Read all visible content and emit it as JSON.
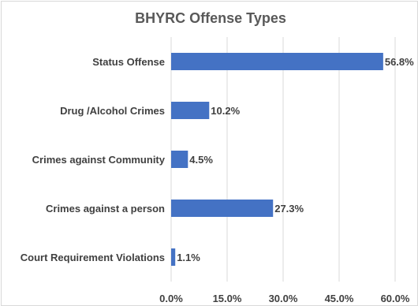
{
  "chart_data": {
    "type": "bar",
    "orientation": "horizontal",
    "title": "BHYRC Offense Types",
    "categories": [
      "Status Offense",
      "Drug /Alcohol Crimes",
      "Crimes against Community",
      "Crimes against a person",
      "Court Requirement Violations"
    ],
    "values": [
      56.8,
      10.2,
      4.5,
      27.3,
      1.1
    ],
    "value_labels": [
      "56.8%",
      "10.2%",
      "4.5%",
      "27.3%",
      "1.1%"
    ],
    "x_ticks": [
      "0.0%",
      "15.0%",
      "30.0%",
      "45.0%",
      "60.0%"
    ],
    "x_tick_values": [
      0,
      15,
      30,
      45,
      60
    ],
    "xlim": [
      0,
      60
    ],
    "xlabel": "",
    "ylabel": "",
    "grid": "vertical",
    "legend": "none",
    "bar_color": "#4472c4"
  }
}
